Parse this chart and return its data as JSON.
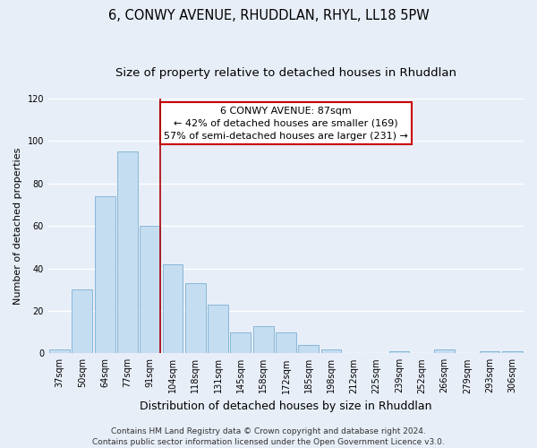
{
  "title": "6, CONWY AVENUE, RHUDDLAN, RHYL, LL18 5PW",
  "subtitle": "Size of property relative to detached houses in Rhuddlan",
  "xlabel": "Distribution of detached houses by size in Rhuddlan",
  "ylabel": "Number of detached properties",
  "categories": [
    "37sqm",
    "50sqm",
    "64sqm",
    "77sqm",
    "91sqm",
    "104sqm",
    "118sqm",
    "131sqm",
    "145sqm",
    "158sqm",
    "172sqm",
    "185sqm",
    "198sqm",
    "212sqm",
    "225sqm",
    "239sqm",
    "252sqm",
    "266sqm",
    "279sqm",
    "293sqm",
    "306sqm"
  ],
  "values": [
    2,
    30,
    74,
    95,
    60,
    42,
    33,
    23,
    10,
    13,
    10,
    4,
    2,
    0,
    0,
    1,
    0,
    2,
    0,
    1,
    1
  ],
  "bar_color": "#c5ddf0",
  "bar_edge_color": "#7ab0d4",
  "marker_index": 4,
  "marker_color": "#aa0000",
  "ylim": [
    0,
    120
  ],
  "yticks": [
    0,
    20,
    40,
    60,
    80,
    100,
    120
  ],
  "annotation_line1": "6 CONWY AVENUE: 87sqm",
  "annotation_line2": "← 42% of detached houses are smaller (169)",
  "annotation_line3": "57% of semi-detached houses are larger (231) →",
  "annotation_box_color": "#ffffff",
  "annotation_box_edge_color": "#cc0000",
  "footer_line1": "Contains HM Land Registry data © Crown copyright and database right 2024.",
  "footer_line2": "Contains public sector information licensed under the Open Government Licence v3.0.",
  "background_color": "#e8eef8",
  "plot_background_color": "#e8eef8",
  "grid_color": "#ffffff",
  "title_fontsize": 10.5,
  "subtitle_fontsize": 9.5,
  "xlabel_fontsize": 9,
  "ylabel_fontsize": 8,
  "tick_fontsize": 7,
  "annotation_fontsize": 8,
  "footer_fontsize": 6.5
}
